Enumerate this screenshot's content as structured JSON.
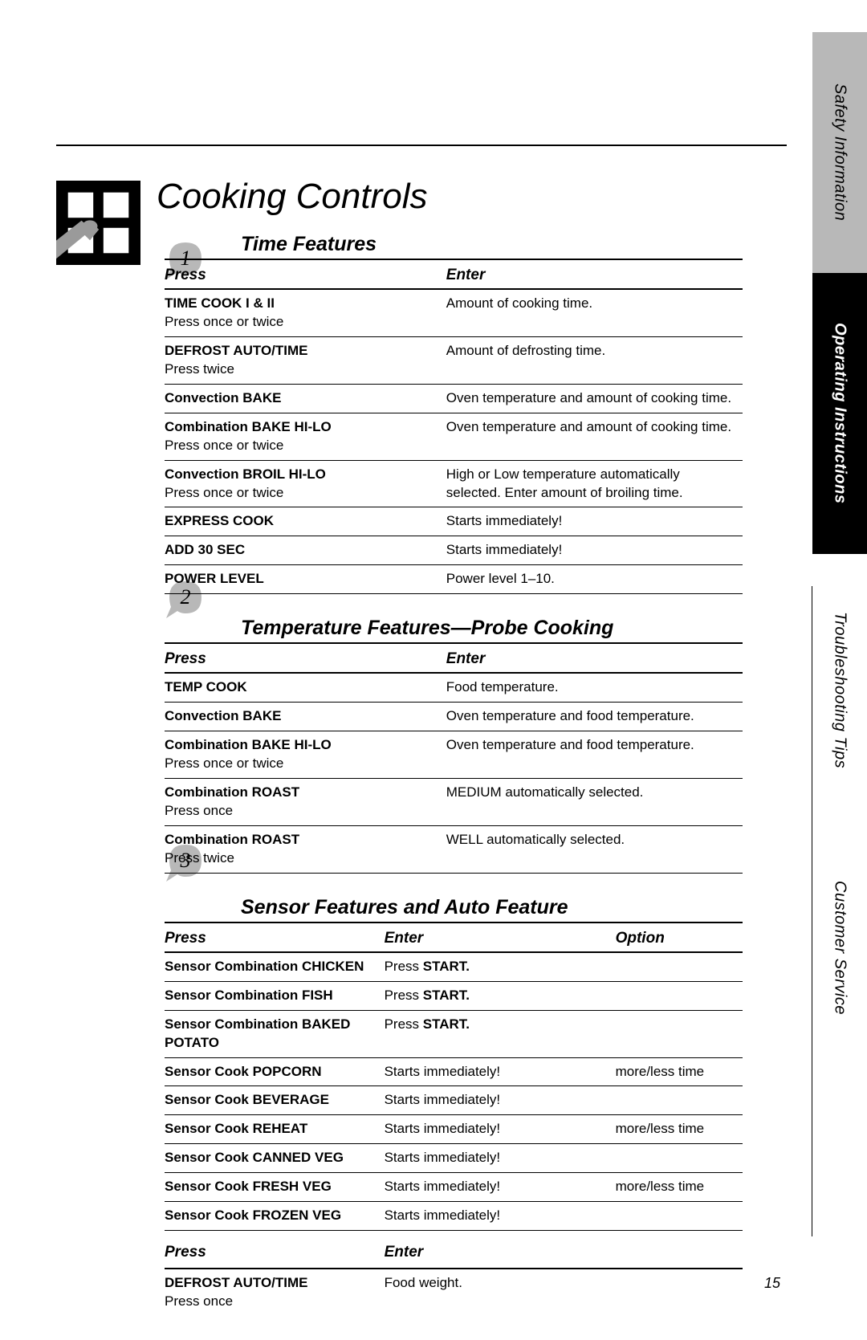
{
  "page_number": "15",
  "main_title": "Cooking Controls",
  "tabs": {
    "safety": "Safety Information",
    "operating": "Operating Instructions",
    "troubleshooting": "Troubleshooting Tips",
    "customer": "Customer Service"
  },
  "steps": {
    "s1": "1",
    "s2": "2",
    "s3": "3"
  },
  "section1": {
    "title": "Time Features",
    "head_press": "Press",
    "head_enter": "Enter",
    "rows": [
      {
        "press": "TIME COOK I & II",
        "sub": "Press once or twice",
        "enter": "Amount of cooking time."
      },
      {
        "press": "DEFROST AUTO/TIME",
        "sub": "Press twice",
        "enter": "Amount of defrosting time."
      },
      {
        "press": "Convection BAKE",
        "sub": "",
        "enter": "Oven temperature and amount of cooking time."
      },
      {
        "press": "Combination BAKE HI-LO",
        "sub": "Press once or twice",
        "enter": "Oven temperature and amount of cooking time."
      },
      {
        "press": "Convection BROIL HI-LO",
        "sub": "Press once or twice",
        "enter": "High or Low temperature automatically selected. Enter amount of broiling time."
      },
      {
        "press": "EXPRESS COOK",
        "sub": "",
        "enter": "Starts immediately!"
      },
      {
        "press": "ADD 30 SEC",
        "sub": "",
        "enter": "Starts immediately!"
      },
      {
        "press": "POWER LEVEL",
        "sub": "",
        "enter": "Power level 1–10."
      }
    ]
  },
  "section2": {
    "title": "Temperature Features—Probe Cooking",
    "head_press": "Press",
    "head_enter": "Enter",
    "rows": [
      {
        "press": "TEMP COOK",
        "sub": "",
        "enter": "Food temperature."
      },
      {
        "press": "Convection BAKE",
        "sub": "",
        "enter": "Oven temperature and food temperature."
      },
      {
        "press": "Combination BAKE HI-LO",
        "sub": "Press once or twice",
        "enter": "Oven temperature and food temperature."
      },
      {
        "press": "Combination ROAST",
        "sub": "Press once",
        "enter": "MEDIUM automatically selected."
      },
      {
        "press": "Combination ROAST",
        "sub": "Press twice",
        "enter": "WELL automatically selected."
      }
    ]
  },
  "section3": {
    "title": "Sensor Features and Auto Feature",
    "head_press": "Press",
    "head_enter": "Enter",
    "head_option": "Option",
    "rows": [
      {
        "press": "Sensor Combination CHICKEN",
        "enter_pre": "Press ",
        "enter_bold": "START.",
        "opt": ""
      },
      {
        "press": "Sensor Combination FISH",
        "enter_pre": "Press ",
        "enter_bold": "START.",
        "opt": ""
      },
      {
        "press": "Sensor Combination BAKED POTATO",
        "enter_pre": "Press ",
        "enter_bold": "START.",
        "opt": ""
      },
      {
        "press": "Sensor Cook POPCORN",
        "enter_pre": "Starts immediately!",
        "enter_bold": "",
        "opt": "more/less time"
      },
      {
        "press": "Sensor Cook BEVERAGE",
        "enter_pre": "Starts immediately!",
        "enter_bold": "",
        "opt": ""
      },
      {
        "press": "Sensor Cook REHEAT",
        "enter_pre": "Starts immediately!",
        "enter_bold": "",
        "opt": "more/less time"
      },
      {
        "press": "Sensor Cook CANNED VEG",
        "enter_pre": "Starts immediately!",
        "enter_bold": "",
        "opt": ""
      },
      {
        "press": "Sensor Cook FRESH VEG",
        "enter_pre": "Starts immediately!",
        "enter_bold": "",
        "opt": "more/less time"
      },
      {
        "press": "Sensor Cook FROZEN VEG",
        "enter_pre": "Starts immediately!",
        "enter_bold": "",
        "opt": ""
      }
    ],
    "sub_head_press": "Press",
    "sub_head_enter": "Enter",
    "sub_rows": [
      {
        "press": "DEFROST AUTO/TIME",
        "sub": "Press once",
        "enter": "Food weight."
      }
    ]
  }
}
